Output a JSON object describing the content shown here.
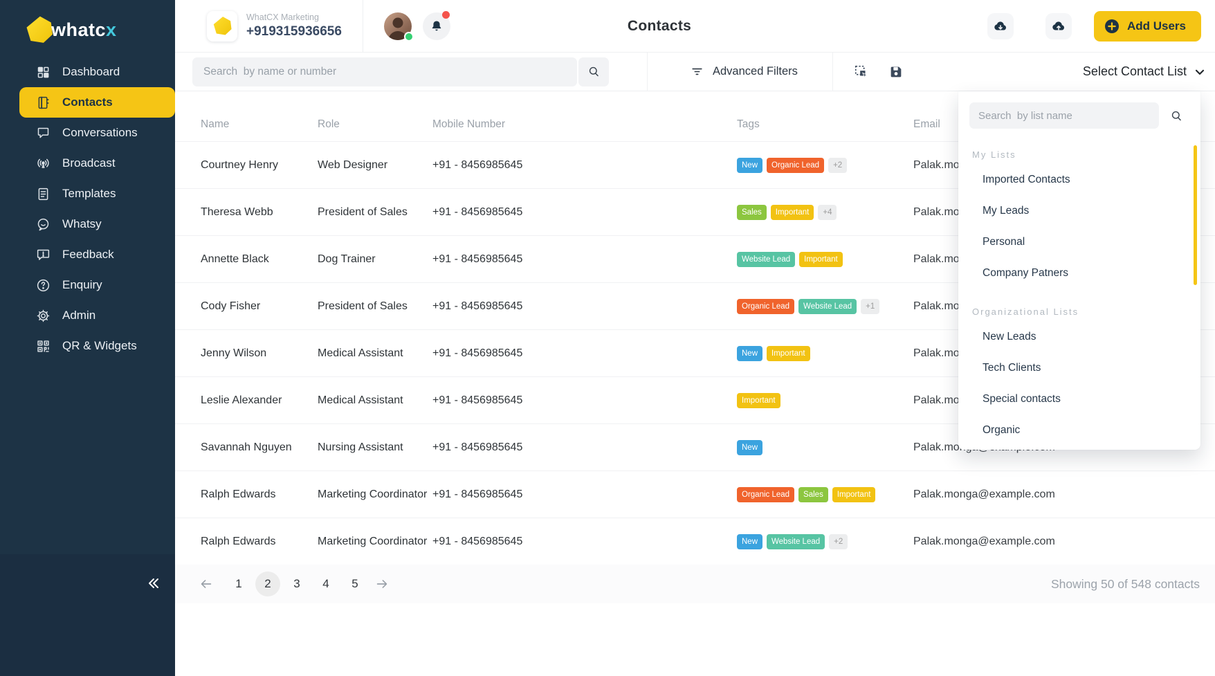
{
  "brand": {
    "name": "whatcx"
  },
  "sidebar": {
    "items": [
      {
        "label": "Dashboard",
        "icon": "dashboard-icon",
        "active": false
      },
      {
        "label": "Contacts",
        "icon": "contacts-icon",
        "active": true
      },
      {
        "label": "Conversations",
        "icon": "conversations-icon",
        "active": false
      },
      {
        "label": "Broadcast",
        "icon": "broadcast-icon",
        "active": false
      },
      {
        "label": "Templates",
        "icon": "templates-icon",
        "active": false
      },
      {
        "label": "Whatsy",
        "icon": "whatsy-icon",
        "active": false
      },
      {
        "label": "Feedback",
        "icon": "feedback-icon",
        "active": false
      },
      {
        "label": "Enquiry",
        "icon": "enquiry-icon",
        "active": false
      },
      {
        "label": "Admin",
        "icon": "admin-icon",
        "active": false
      },
      {
        "label": "QR & Widgets",
        "icon": "qr-widgets-icon",
        "active": false
      }
    ]
  },
  "header": {
    "workspace_name": "WhatCX Marketing",
    "workspace_phone": "+919315936656",
    "title": "Contacts",
    "add_users_label": "Add Users"
  },
  "toolbar": {
    "search_placeholder": "Search  by name or number",
    "advanced_filters_label": "Advanced Filters",
    "select_contact_list_label": "Select Contact List"
  },
  "contact_list_dropdown": {
    "search_placeholder": "Search  by list name",
    "sections": [
      {
        "label": "My Lists",
        "items": [
          "Imported Contacts",
          "My Leads",
          "Personal",
          "Company Patners"
        ]
      },
      {
        "label": "Organizational Lists",
        "items": [
          "New Leads",
          "Tech Clients",
          "Special contacts",
          "Organic"
        ]
      }
    ]
  },
  "table": {
    "columns": [
      "Name",
      "Role",
      "Mobile Number",
      "Tags",
      "Email"
    ],
    "rows": [
      {
        "name": "Courtney Henry",
        "role": "Web Designer",
        "mobile": "+91 - 8456985645",
        "tags": [
          "New",
          "Organic Lead"
        ],
        "extra": "+2",
        "email": "Palak.monga@example.com"
      },
      {
        "name": "Theresa Webb",
        "role": "President of Sales",
        "mobile": "+91 - 8456985645",
        "tags": [
          "Sales",
          "Important"
        ],
        "extra": "+4",
        "email": "Palak.monga@example.com"
      },
      {
        "name": "Annette Black",
        "role": "Dog Trainer",
        "mobile": "+91 - 8456985645",
        "tags": [
          "Website Lead",
          "Important"
        ],
        "extra": null,
        "email": "Palak.monga@example.com"
      },
      {
        "name": "Cody Fisher",
        "role": "President of Sales",
        "mobile": "+91 - 8456985645",
        "tags": [
          "Organic Lead",
          "Website Lead"
        ],
        "extra": "+1",
        "email": "Palak.monga@example.com"
      },
      {
        "name": "Jenny Wilson",
        "role": "Medical Assistant",
        "mobile": "+91 - 8456985645",
        "tags": [
          "New",
          "Important"
        ],
        "extra": null,
        "email": "Palak.monga@example.com"
      },
      {
        "name": "Leslie Alexander",
        "role": "Medical Assistant",
        "mobile": "+91 - 8456985645",
        "tags": [
          "Important"
        ],
        "extra": null,
        "email": "Palak.monga@example.com"
      },
      {
        "name": "Savannah Nguyen",
        "role": "Nursing Assistant",
        "mobile": "+91 - 8456985645",
        "tags": [
          "New"
        ],
        "extra": null,
        "email": "Palak.monga@example.com"
      },
      {
        "name": "Ralph Edwards",
        "role": "Marketing Coordinator",
        "mobile": "+91 - 8456985645",
        "tags": [
          "Organic Lead",
          "Sales",
          "Important"
        ],
        "extra": null,
        "email": "Palak.monga@example.com"
      },
      {
        "name": "Ralph Edwards",
        "role": "Marketing Coordinator",
        "mobile": "+91 - 8456985645",
        "tags": [
          "New",
          "Website Lead"
        ],
        "extra": "+2",
        "email": "Palak.monga@example.com"
      }
    ]
  },
  "tags": {
    "colors": {
      "New": "#3BA3DF",
      "Organic Lead": "#F0632C",
      "Sales": "#8CC63F",
      "Important": "#F2C212",
      "Website Lead": "#57C4A3"
    },
    "extra_bg": "#ECEDEE",
    "extra_text": "#9B9B9B"
  },
  "pagination": {
    "pages": [
      "1",
      "2",
      "3",
      "4",
      "5"
    ],
    "active_page": "2",
    "summary": "Showing 50 of 548 contacts"
  },
  "theme": {
    "accent_yellow": "#F5C515",
    "sidebar_bg": "#1D3345",
    "status_green": "#35D073",
    "alert_red": "#F4544C",
    "logo_accent": "#44C8DC"
  }
}
